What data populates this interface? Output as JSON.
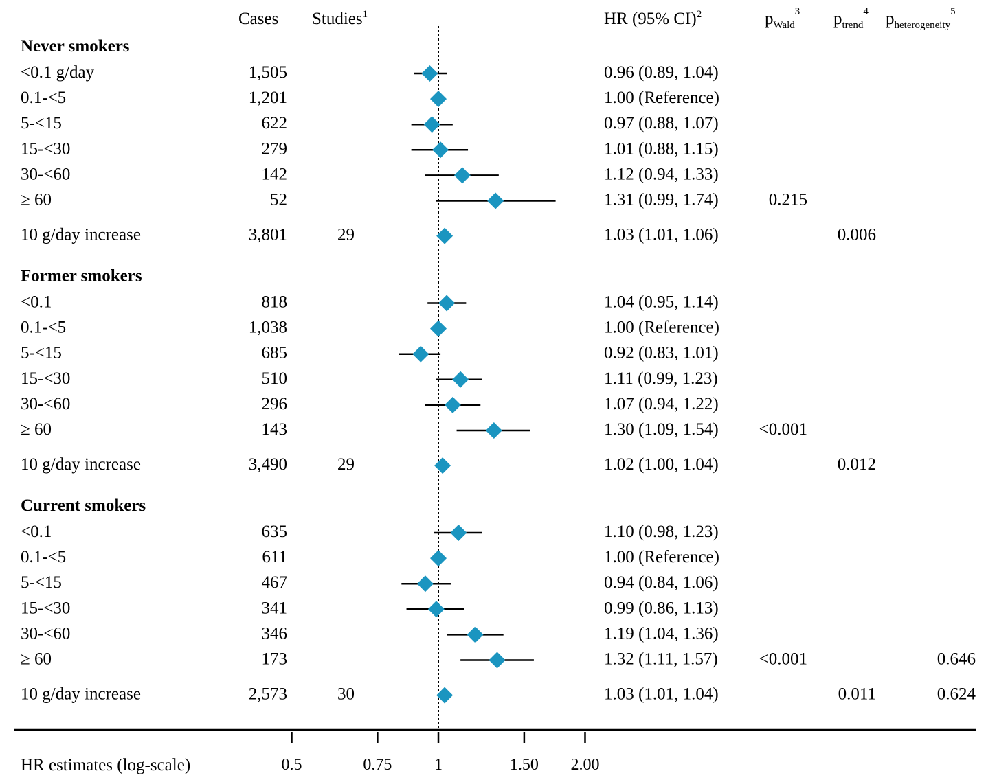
{
  "headers": {
    "cases": "Cases",
    "studies": "Studies",
    "studies_sup": "1",
    "hr": "HR (95% CI)",
    "hr_sup": "2",
    "pwald_p": "p",
    "pwald_sub": "Wald",
    "pwald_sup": "3",
    "ptrend_p": "p",
    "ptrend_sub": "trend",
    "ptrend_sup": "4",
    "phet_p": "p",
    "phet_sub": "heterogeneity",
    "phet_sup": "5"
  },
  "colors": {
    "marker": "#1b95c0",
    "line": "#000000"
  },
  "chart_data": {
    "type": "forest",
    "xlabel": "HR estimates (log-scale)",
    "xscale": "log",
    "xlim": [
      0.42,
      2.5
    ],
    "reference_line": 1,
    "ticks": [
      {
        "value": 0.5,
        "label": "0.5"
      },
      {
        "value": 0.75,
        "label": "0.75"
      },
      {
        "value": 1,
        "label": "1"
      },
      {
        "value": 1.5,
        "label": "1.50"
      },
      {
        "value": 2,
        "label": "2.00"
      }
    ],
    "groups": [
      {
        "title": "Never smokers",
        "rows": [
          {
            "label": "<0.1 g/day",
            "cases": "1,505",
            "studies": "",
            "hr": 0.96,
            "lo": 0.89,
            "hi": 1.04,
            "hr_text": "0.96 (0.89, 1.04)",
            "pwald": "",
            "ptrend": "",
            "phet": ""
          },
          {
            "label": "0.1-<5",
            "cases": "1,201",
            "studies": "",
            "hr": 1.0,
            "lo": 1.0,
            "hi": 1.0,
            "hr_text": "1.00 (Reference)",
            "pwald": "",
            "ptrend": "",
            "phet": ""
          },
          {
            "label": "5-<15",
            "cases": "622",
            "studies": "",
            "hr": 0.97,
            "lo": 0.88,
            "hi": 1.07,
            "hr_text": "0.97 (0.88, 1.07)",
            "pwald": "",
            "ptrend": "",
            "phet": ""
          },
          {
            "label": "15-<30",
            "cases": "279",
            "studies": "",
            "hr": 1.01,
            "lo": 0.88,
            "hi": 1.15,
            "hr_text": "1.01 (0.88, 1.15)",
            "pwald": "",
            "ptrend": "",
            "phet": ""
          },
          {
            "label": "30-<60",
            "cases": "142",
            "studies": "",
            "hr": 1.12,
            "lo": 0.94,
            "hi": 1.33,
            "hr_text": "1.12 (0.94, 1.33)",
            "pwald": "",
            "ptrend": "",
            "phet": ""
          },
          {
            "label": "≥ 60",
            "cases": "52",
            "studies": "",
            "hr": 1.31,
            "lo": 0.99,
            "hi": 1.74,
            "hr_text": "1.31 (0.99, 1.74)",
            "pwald": "0.215",
            "ptrend": "",
            "phet": ""
          },
          {
            "label": "10 g/day increase",
            "cases": "3,801",
            "studies": "29",
            "hr": 1.03,
            "lo": 1.01,
            "hi": 1.06,
            "hr_text": "1.03 (1.01, 1.06)",
            "pwald": "",
            "ptrend": "0.006",
            "phet": ""
          }
        ]
      },
      {
        "title": "Former smokers",
        "rows": [
          {
            "label": "<0.1",
            "cases": "818",
            "studies": "",
            "hr": 1.04,
            "lo": 0.95,
            "hi": 1.14,
            "hr_text": "1.04 (0.95, 1.14)",
            "pwald": "",
            "ptrend": "",
            "phet": ""
          },
          {
            "label": "0.1-<5",
            "cases": "1,038",
            "studies": "",
            "hr": 1.0,
            "lo": 1.0,
            "hi": 1.0,
            "hr_text": "1.00 (Reference)",
            "pwald": "",
            "ptrend": "",
            "phet": ""
          },
          {
            "label": "5-<15",
            "cases": "685",
            "studies": "",
            "hr": 0.92,
            "lo": 0.83,
            "hi": 1.01,
            "hr_text": "0.92 (0.83, 1.01)",
            "pwald": "",
            "ptrend": "",
            "phet": ""
          },
          {
            "label": "15-<30",
            "cases": "510",
            "studies": "",
            "hr": 1.11,
            "lo": 0.99,
            "hi": 1.23,
            "hr_text": "1.11 (0.99, 1.23)",
            "pwald": "",
            "ptrend": "",
            "phet": ""
          },
          {
            "label": "30-<60",
            "cases": "296",
            "studies": "",
            "hr": 1.07,
            "lo": 0.94,
            "hi": 1.22,
            "hr_text": "1.07 (0.94, 1.22)",
            "pwald": "",
            "ptrend": "",
            "phet": ""
          },
          {
            "label": "≥ 60",
            "cases": "143",
            "studies": "",
            "hr": 1.3,
            "lo": 1.09,
            "hi": 1.54,
            "hr_text": "1.30 (1.09, 1.54)",
            "pwald": "<0.001",
            "ptrend": "",
            "phet": ""
          },
          {
            "label": "10 g/day increase",
            "cases": "3,490",
            "studies": "29",
            "hr": 1.02,
            "lo": 1.0,
            "hi": 1.04,
            "hr_text": "1.02 (1.00, 1.04)",
            "pwald": "",
            "ptrend": "0.012",
            "phet": ""
          }
        ]
      },
      {
        "title": "Current smokers",
        "rows": [
          {
            "label": "<0.1",
            "cases": "635",
            "studies": "",
            "hr": 1.1,
            "lo": 0.98,
            "hi": 1.23,
            "hr_text": "1.10 (0.98, 1.23)",
            "pwald": "",
            "ptrend": "",
            "phet": ""
          },
          {
            "label": "0.1-<5",
            "cases": "611",
            "studies": "",
            "hr": 1.0,
            "lo": 1.0,
            "hi": 1.0,
            "hr_text": "1.00 (Reference)",
            "pwald": "",
            "ptrend": "",
            "phet": ""
          },
          {
            "label": "5-<15",
            "cases": "467",
            "studies": "",
            "hr": 0.94,
            "lo": 0.84,
            "hi": 1.06,
            "hr_text": "0.94 (0.84, 1.06)",
            "pwald": "",
            "ptrend": "",
            "phet": ""
          },
          {
            "label": "15-<30",
            "cases": "341",
            "studies": "",
            "hr": 0.99,
            "lo": 0.86,
            "hi": 1.13,
            "hr_text": "0.99 (0.86, 1.13)",
            "pwald": "",
            "ptrend": "",
            "phet": ""
          },
          {
            "label": "30-<60",
            "cases": "346",
            "studies": "",
            "hr": 1.19,
            "lo": 1.04,
            "hi": 1.36,
            "hr_text": "1.19 (1.04, 1.36)",
            "pwald": "",
            "ptrend": "",
            "phet": ""
          },
          {
            "label": "≥ 60",
            "cases": "173",
            "studies": "",
            "hr": 1.32,
            "lo": 1.11,
            "hi": 1.57,
            "hr_text": "1.32 (1.11, 1.57)",
            "pwald": "<0.001",
            "ptrend": "",
            "phet": "0.646"
          },
          {
            "label": "10 g/day increase",
            "cases": "2,573",
            "studies": "30",
            "hr": 1.03,
            "lo": 1.01,
            "hi": 1.04,
            "hr_text": "1.03 (1.01, 1.04)",
            "pwald": "",
            "ptrend": "0.011",
            "phet": "0.624"
          }
        ]
      }
    ]
  }
}
